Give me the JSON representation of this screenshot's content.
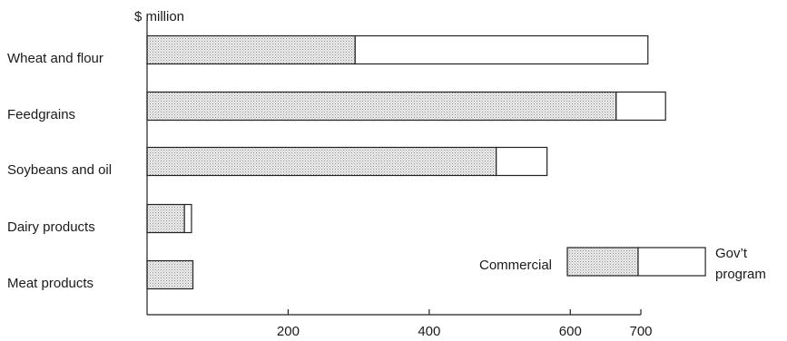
{
  "chart_data": {
    "type": "bar",
    "orientation": "horizontal",
    "stacked": true,
    "unit_label": "$ million",
    "categories": [
      "Wheat and flour",
      "Feedgrains",
      "Soybeans and oil",
      "Dairy products",
      "Meat products"
    ],
    "series": [
      {
        "name": "Commercial",
        "values": [
          295,
          665,
          495,
          53,
          65
        ],
        "fill": "dotted-gray"
      },
      {
        "name": "Gov’t program",
        "values": [
          415,
          70,
          72,
          10,
          0
        ],
        "fill": "white"
      }
    ],
    "xticks": [
      200,
      400,
      600,
      700
    ],
    "xlim": [
      0,
      900
    ],
    "grid": false,
    "legend": {
      "placement": "bottom-right",
      "left_label": "Commercial",
      "right_label_line1": "Gov’t",
      "right_label_line2": "program",
      "commercial_share": 100,
      "program_share": 95
    }
  }
}
